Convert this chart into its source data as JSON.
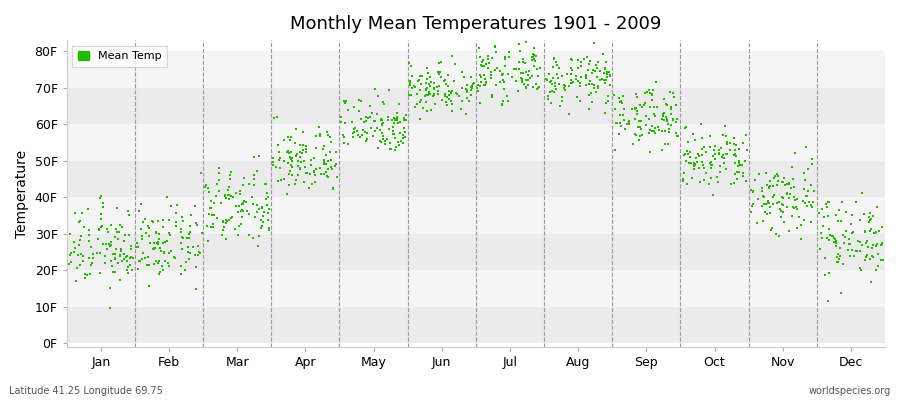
{
  "title": "Monthly Mean Temperatures 1901 - 2009",
  "ylabel": "Temperature",
  "xlabel": "",
  "background_color": "#ffffff",
  "plot_bg_color": "#ffffff",
  "dot_color": "#22bb00",
  "dot_size": 3,
  "ytick_labels": [
    "0F",
    "10F",
    "20F",
    "30F",
    "40F",
    "50F",
    "60F",
    "70F",
    "80F"
  ],
  "ytick_values": [
    0,
    10,
    20,
    30,
    40,
    50,
    60,
    70,
    80
  ],
  "ylim": [
    -1,
    83
  ],
  "months": [
    "Jan",
    "Feb",
    "Mar",
    "Apr",
    "May",
    "Jun",
    "Jul",
    "Aug",
    "Sep",
    "Oct",
    "Nov",
    "Dec"
  ],
  "footnote_left": "Latitude 41.25 Longitude 69.75",
  "footnote_right": "worldspecies.org",
  "legend_label": "Mean Temp",
  "band_colors": [
    "#ebebeb",
    "#f5f5f5"
  ],
  "monthly_data": [
    {
      "mean": 26,
      "std": 5.5
    },
    {
      "mean": 27,
      "std": 5.0
    },
    {
      "mean": 37,
      "std": 5.5
    },
    {
      "mean": 50,
      "std": 4.5
    },
    {
      "mean": 60,
      "std": 4.0
    },
    {
      "mean": 70,
      "std": 3.5
    },
    {
      "mean": 74,
      "std": 3.5
    },
    {
      "mean": 72,
      "std": 3.5
    },
    {
      "mean": 62,
      "std": 4.0
    },
    {
      "mean": 50,
      "std": 4.5
    },
    {
      "mean": 40,
      "std": 5.5
    },
    {
      "mean": 29,
      "std": 5.5
    }
  ],
  "n_points": 109
}
